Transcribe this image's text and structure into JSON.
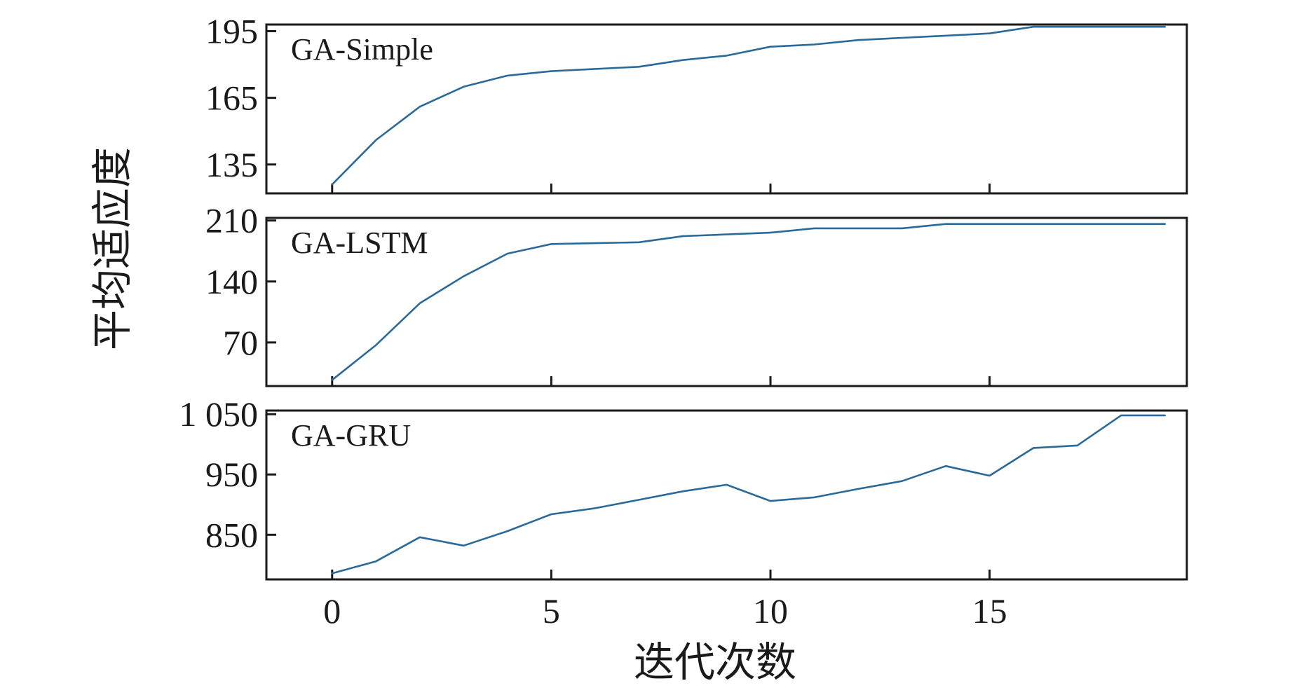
{
  "chart_data": [
    {
      "type": "line",
      "label": "GA-Simple",
      "x": [
        0,
        1,
        2,
        3,
        4,
        5,
        6,
        7,
        8,
        9,
        10,
        11,
        12,
        13,
        14,
        15,
        16,
        17,
        18,
        19
      ],
      "values": [
        126,
        146,
        161,
        170,
        175,
        177,
        178,
        179,
        182,
        184,
        188,
        189,
        191,
        192,
        193,
        194,
        197,
        197,
        197,
        197
      ],
      "ylim": [
        122,
        198
      ],
      "yticks": [
        135,
        165,
        195
      ],
      "ytick_labels": [
        "135",
        "165",
        "195"
      ],
      "color": "#2a6a9a"
    },
    {
      "type": "line",
      "label": "GA-LSTM",
      "x": [
        0,
        1,
        2,
        3,
        4,
        5,
        6,
        7,
        8,
        9,
        10,
        11,
        12,
        13,
        14,
        15,
        16,
        17,
        18,
        19
      ],
      "values": [
        27,
        67,
        115,
        146,
        172,
        183,
        184,
        185,
        192,
        194,
        196,
        201,
        201,
        201,
        206,
        206,
        206,
        206,
        206,
        206
      ],
      "ylim": [
        20,
        213
      ],
      "yticks": [
        70,
        140,
        210
      ],
      "ytick_labels": [
        "70",
        "140",
        "210"
      ],
      "color": "#2a6a9a"
    },
    {
      "type": "line",
      "label": "GA-GRU",
      "x": [
        0,
        1,
        2,
        3,
        4,
        5,
        6,
        7,
        8,
        9,
        10,
        11,
        12,
        13,
        14,
        15,
        16,
        17,
        18,
        19
      ],
      "values": [
        786,
        806,
        846,
        832,
        856,
        884,
        894,
        908,
        922,
        933,
        906,
        912,
        926,
        939,
        964,
        948,
        994,
        998,
        1048,
        1048
      ],
      "ylim": [
        776,
        1056
      ],
      "yticks": [
        850,
        950,
        1050
      ],
      "ytick_labels": [
        "850",
        "950",
        "1 050"
      ],
      "color": "#2a6a9a"
    }
  ],
  "x_axis": {
    "ticks": [
      0,
      5,
      10,
      15
    ],
    "tick_labels": [
      "0",
      "5",
      "10",
      "15"
    ],
    "xlim": [
      -1.5,
      19.5
    ],
    "label": "迭代次数"
  },
  "y_axis_label": "平均适应度"
}
